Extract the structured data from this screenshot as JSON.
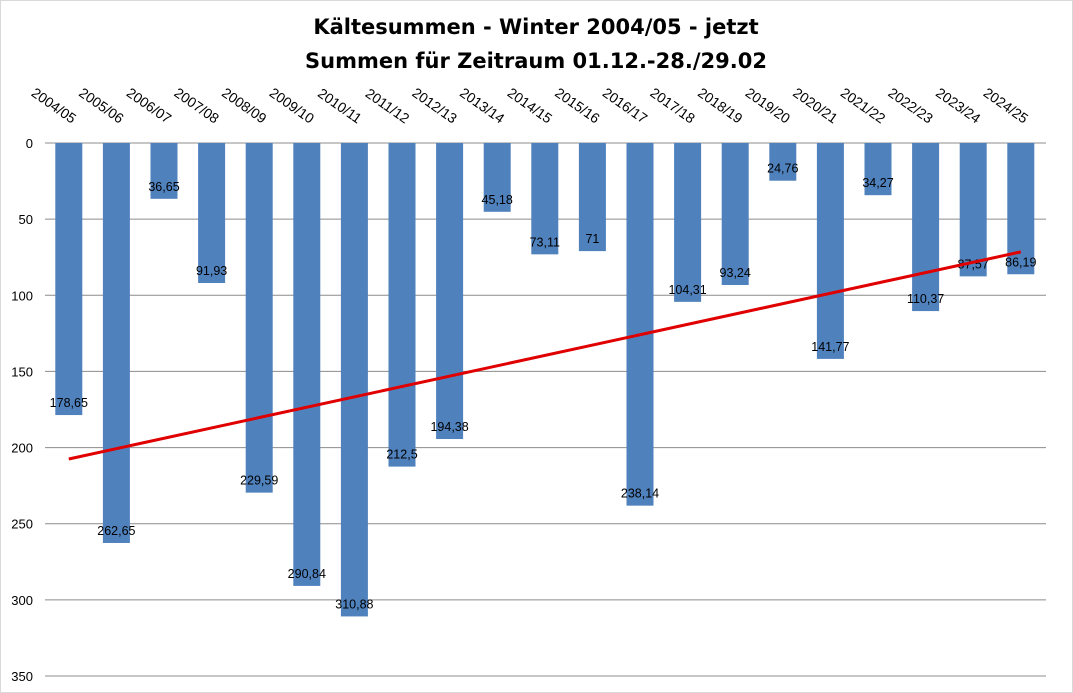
{
  "chart_data": {
    "type": "bar",
    "title": "Kältesummen  - Winter 2004/05  - jetzt",
    "subtitle": "Summen für Zeitraum 01.12.-28./29.02",
    "categories": [
      "2004/05",
      "2005/06",
      "2006/07",
      "2007/08",
      "2008/09",
      "2009/10",
      "2010/11",
      "2011/12",
      "2012/13",
      "2013/14",
      "2014/15",
      "2015/16",
      "2016/17",
      "2017/18",
      "2018/19",
      "2019/20",
      "2020/21",
      "2021/22",
      "2022/23",
      "2023/24",
      "2024/25"
    ],
    "values": [
      178.65,
      262.65,
      36.65,
      91.93,
      229.59,
      290.84,
      310.88,
      212.5,
      194.38,
      45.18,
      73.11,
      71,
      238.14,
      104.31,
      93.24,
      24.76,
      141.77,
      34.27,
      110.37,
      87.57,
      86.19
    ],
    "data_labels": [
      "178,65",
      "262,65",
      "36,65",
      "91,93",
      "229,59",
      "290,84",
      "310,88",
      "212,5",
      "194,38",
      "45,18",
      "73,11",
      "71",
      "238,14",
      "104,31",
      "93,24",
      "24,76",
      "141,77",
      "34,27",
      "110,37",
      "87,57",
      "86,19"
    ],
    "yaxis": {
      "ylim": [
        0,
        350
      ],
      "reversed": true,
      "ticks": [
        0,
        50,
        100,
        150,
        200,
        250,
        300,
        350
      ],
      "tick_labels": [
        "0",
        "50",
        "100",
        "150",
        "200",
        "250",
        "300",
        "350"
      ]
    },
    "xaxis_position": "top",
    "grid": true,
    "trendline": {
      "type": "linear",
      "color": "#e00000",
      "start_value": 207.5,
      "end_value": 71.5
    },
    "bar_color": "#4f81bd"
  }
}
